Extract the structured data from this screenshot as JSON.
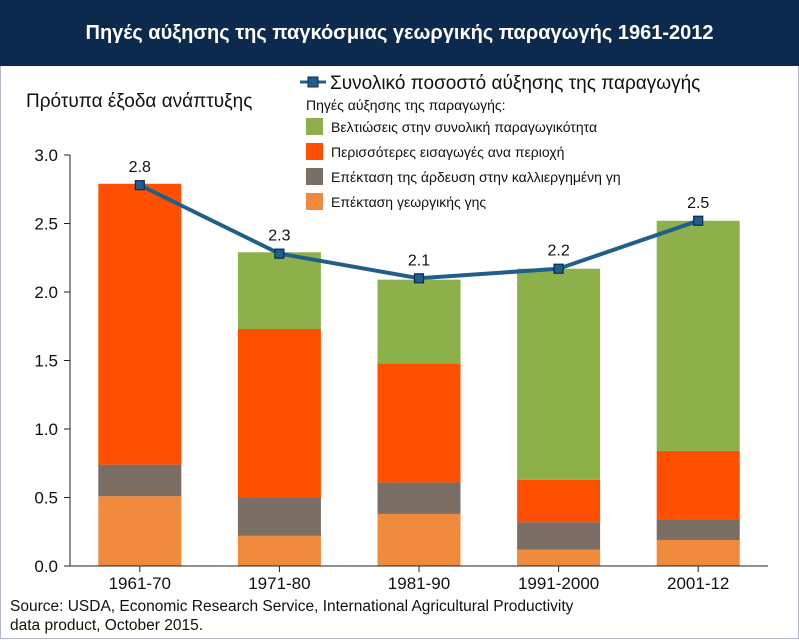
{
  "header": {
    "title": "Πηγές αύξησης της παγκόσμιας γεωργικής παραγωγής 1961-2012"
  },
  "chart_data": {
    "type": "bar",
    "subtitle": "Πρότυπα έξοδα ανάπτυξης",
    "categories": [
      "1961-70",
      "1971-80",
      "1981-90",
      "1991-2000",
      "2001-12"
    ],
    "series": [
      {
        "name": "Επέκταση γεωργικής γης",
        "color": "#f08a3c",
        "values": [
          0.51,
          0.22,
          0.38,
          0.12,
          0.19
        ]
      },
      {
        "name": "Επέκταση της άρδευση στην καλλιεργημένη γη",
        "color": "#7a6d63",
        "values": [
          0.23,
          0.28,
          0.23,
          0.2,
          0.15
        ]
      },
      {
        "name": "Περισσότερες εισαγωγές ανα περιοχή",
        "color": "#ff4f00",
        "values": [
          2.05,
          1.23,
          0.87,
          0.31,
          0.5
        ]
      },
      {
        "name": "Βελτιώσεις στην συνολική παραγωγικότητα",
        "color": "#8db04a",
        "values": [
          0.0,
          0.56,
          0.61,
          1.54,
          1.68
        ]
      }
    ],
    "line": {
      "name": "Συνολικό ποσοστό αύξησης της παραγωγής",
      "color": "#1f5f8b",
      "values": [
        2.78,
        2.28,
        2.1,
        2.17,
        2.52
      ],
      "labels": [
        "2.8",
        "2.3",
        "2.1",
        "2.2",
        "2.5"
      ]
    },
    "legend_heading": "Πηγές αύξησης της παραγωγής:",
    "legend_placement": "top-right",
    "ylim": [
      0,
      3.0
    ],
    "yticks": [
      "0.0",
      "0.5",
      "1.0",
      "1.5",
      "2.0",
      "2.5",
      "3.0"
    ],
    "grid": false
  },
  "source": {
    "line1": "Source: USDA, Economic Research Service, International Agricultural Productivity",
    "line2": "data product, October 2015."
  }
}
